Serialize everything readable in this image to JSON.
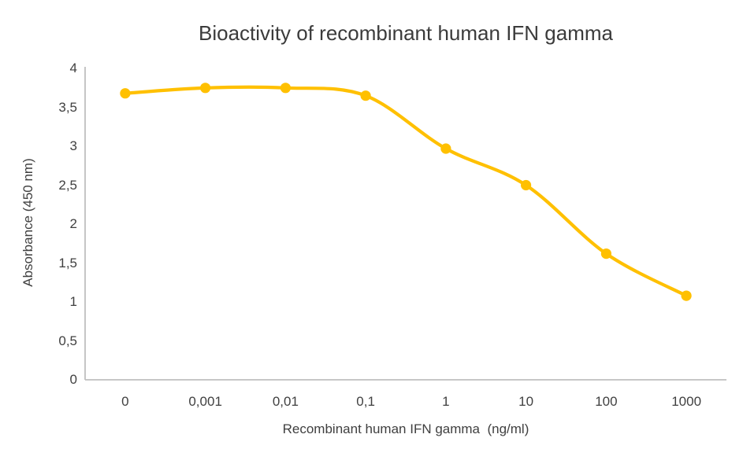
{
  "chart_data": {
    "type": "line",
    "title": "Bioactivity of recombinant human IFN gamma",
    "categories": [
      "0",
      "0,001",
      "0,01",
      "0,1",
      "1",
      "10",
      "100",
      "1000"
    ],
    "series": [
      {
        "name": "Absorbance (450 nm)",
        "values": [
          3.68,
          3.75,
          3.75,
          3.65,
          2.97,
          2.5,
          1.62,
          1.08
        ]
      }
    ],
    "xlabel": "Recombinant human IFN gamma  (ng/ml)",
    "ylabel": "Absorbance (450 nm)",
    "ylim": [
      0,
      4
    ],
    "ytick_step": 0.5,
    "ytick_labels": [
      "0",
      "0,5",
      "1",
      "1,5",
      "2",
      "2,5",
      "3",
      "3,5",
      "4"
    ],
    "x_scale_note": "categorical (log-like dose series, evenly spaced)",
    "grid": false,
    "legend_position": "none",
    "smoothed_line": true,
    "colors": {
      "line": "#FFC000",
      "marker": "#FFC000",
      "axis": "#BFBFBF",
      "text": "#404040",
      "title_text": "#3B3B3B",
      "background": "#FFFFFF"
    }
  }
}
